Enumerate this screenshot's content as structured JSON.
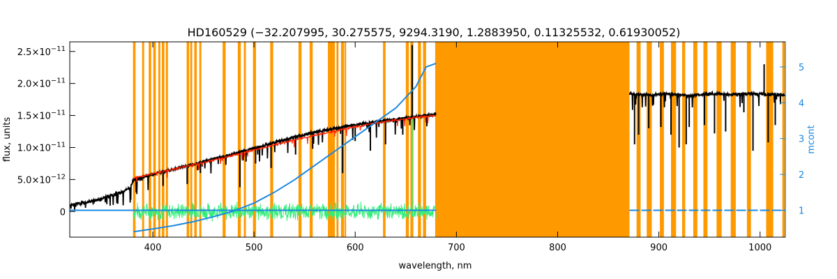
{
  "chart_data": {
    "type": "line",
    "title": "HD160529   (−32.207995, 30.275575, 9294.3190, 1.2883950, 0.11325532, 0.61930052)",
    "xlabel": "wavelength, nm",
    "ylabel_left": "flux, units",
    "ylabel_right": "mcont",
    "xlim": [
      318,
      1025
    ],
    "ylim_left": [
      -4e-12,
      2.65e-11
    ],
    "ylim_right": [
      0.25,
      5.7
    ],
    "x_ticks": [
      400,
      500,
      600,
      700,
      800,
      900,
      1000
    ],
    "x_tick_labels": [
      "400",
      "500",
      "600",
      "700",
      "800",
      "900",
      "1000"
    ],
    "y_left_ticks": [
      0,
      5e-12,
      1e-11,
      1.5e-11,
      2e-11,
      2.5e-11
    ],
    "y_left_tick_labels": [
      {
        "mantissa": "0",
        "exp": ""
      },
      {
        "mantissa": "5.0×10",
        "exp": "−12"
      },
      {
        "mantissa": "1.0×10",
        "exp": "−11"
      },
      {
        "mantissa": "1.5×10",
        "exp": "−11"
      },
      {
        "mantissa": "2.0×10",
        "exp": "−11"
      },
      {
        "mantissa": "2.5×10",
        "exp": "−11"
      }
    ],
    "y_right_ticks": [
      1,
      2,
      3,
      4,
      5
    ],
    "y_right_tick_labels": [
      "1",
      "2",
      "3",
      "4",
      "5"
    ],
    "masked_regions": [
      [
        380.5,
        383
      ],
      [
        389.5,
        391.5
      ],
      [
        396,
        398.5
      ],
      [
        400.5,
        403
      ],
      [
        405.5,
        407.5
      ],
      [
        409,
        411.5
      ],
      [
        413,
        415
      ],
      [
        433.5,
        436
      ],
      [
        437,
        439
      ],
      [
        441,
        443.5
      ],
      [
        446,
        448
      ],
      [
        469,
        472
      ],
      [
        484,
        487
      ],
      [
        490,
        492
      ],
      [
        499,
        502
      ],
      [
        516,
        519
      ],
      [
        544,
        547
      ],
      [
        555,
        558
      ],
      [
        573,
        580
      ],
      [
        581.5,
        583.5
      ],
      [
        586,
        589
      ],
      [
        589.5,
        591
      ],
      [
        627.5,
        630
      ],
      [
        650,
        653
      ],
      [
        654.5,
        657.5
      ],
      [
        662,
        665
      ],
      [
        667,
        670
      ],
      [
        679,
        871
      ],
      [
        878,
        882
      ],
      [
        888,
        893
      ],
      [
        901,
        905
      ],
      [
        912,
        917
      ],
      [
        923,
        926
      ],
      [
        934,
        938
      ],
      [
        944,
        948
      ],
      [
        957,
        962
      ],
      [
        971,
        976
      ],
      [
        987,
        991
      ],
      [
        1006,
        1013
      ],
      [
        1022,
        1025
      ]
    ],
    "series": [
      {
        "id": "observed",
        "color": "#000000",
        "segments": [
          {
            "x": [
              318,
              330,
              345,
              360,
              372,
              378,
              381,
              390,
              400,
              420,
              440,
              460,
              480,
              500,
              520,
              540,
              560,
              580,
              600,
              620,
              640,
              660,
              680
            ],
            "y": [
              1e-12,
              1.3e-12,
              1.8e-12,
              2.6e-12,
              3.2e-12,
              3.8e-12,
              4.9e-12,
              5.3e-12,
              5.8e-12,
              6.6e-12,
              7.4e-12,
              8.2e-12,
              9e-12,
              9.9e-12,
              1.08e-11,
              1.16e-11,
              1.24e-11,
              1.3e-11,
              1.35e-11,
              1.4e-11,
              1.44e-11,
              1.48e-11,
              1.52e-11
            ]
          },
          {
            "x": [
              871,
              890,
              910,
              930,
              950,
              970,
              990,
              1010,
              1025
            ],
            "y": [
              1.84e-11,
              1.82e-11,
              1.84e-11,
              1.81e-11,
              1.84e-11,
              1.83e-11,
              1.84e-11,
              1.83e-11,
              1.82e-11
            ]
          }
        ],
        "absorption_lines": [
          [
            410.2,
            4e-12
          ],
          [
            434.0,
            4.3e-12
          ],
          [
            447.1,
            6e-12
          ],
          [
            486.1,
            3.8e-12
          ],
          [
            492.2,
            7.8e-12
          ],
          [
            501.6,
            7.5e-12
          ],
          [
            516.9,
            6.8e-12
          ],
          [
            541.1,
            8.9e-12
          ],
          [
            558.0,
            9.8e-12
          ],
          [
            587.6,
            6e-12
          ],
          [
            600.0,
            1.1e-11
          ],
          [
            615.0,
            9.5e-12
          ],
          [
            630.0,
            1.05e-11
          ],
          [
            647.0,
            1.2e-11
          ],
          [
            876.0,
            1.05e-11
          ],
          [
            880.0,
            1.2e-11
          ],
          [
            890.0,
            1.3e-11
          ],
          [
            902.0,
            1.32e-11
          ],
          [
            912.0,
            1.2e-11
          ],
          [
            920.0,
            1e-11
          ],
          [
            927.0,
            1.05e-11
          ],
          [
            930.0,
            1.32e-11
          ],
          [
            945.0,
            1.35e-11
          ],
          [
            955.0,
            1.22e-11
          ],
          [
            966.0,
            1.25e-11
          ],
          [
            984.0,
            1.55e-11
          ],
          [
            993.0,
            9.5e-12
          ],
          [
            1008.0,
            1.08e-11
          ],
          [
            1015.0,
            1.35e-11
          ]
        ],
        "emission_lines": [
          [
            656.3,
            2.6e-11
          ],
          [
            1004.0,
            2.3e-11
          ]
        ]
      },
      {
        "id": "model",
        "color": "#ff2200",
        "x": [
          381,
          400,
          420,
          440,
          460,
          480,
          500,
          520,
          540,
          560,
          580,
          600,
          620,
          640,
          660,
          680
        ],
        "y": [
          5.2e-12,
          5.9e-12,
          6.6e-12,
          7.3e-12,
          8e-12,
          8.8e-12,
          9.6e-12,
          1.04e-11,
          1.12e-11,
          1.19e-11,
          1.26e-11,
          1.32e-11,
          1.38e-11,
          1.43e-11,
          1.47e-11,
          1.5e-11
        ]
      },
      {
        "id": "residuals",
        "color": "#33ee77",
        "x_range": [
          381,
          680
        ],
        "center": 0,
        "amplitude": 1.6e-12,
        "emission_peak": [
          656.3,
          2.6e-11
        ]
      },
      {
        "id": "mcont",
        "color": "#1a88e0",
        "axis": "right",
        "segments": [
          {
            "x": [
              318,
              340,
              360,
              380,
              400,
              420,
              440,
              460,
              480,
              500,
              520,
              540,
              560,
              580,
              600,
              620,
              640,
              660,
              670,
              680
            ],
            "y": [
              1.0,
              1.0,
              1.0,
              1.0,
              1.0,
              1.0,
              1.0,
              1.0,
              1.0,
              1.0,
              1.0,
              1.0,
              1.0,
              1.0,
              1.0,
              1.0,
              1.0,
              1.0,
              1.0,
              1.0
            ]
          },
          {
            "x": [
              871,
              900,
              930,
              960,
              990,
              1025
            ],
            "y": [
              1.0,
              1.0,
              1.0,
              1.0,
              1.0,
              1.0
            ]
          }
        ],
        "curve": {
          "x": [
            381,
            400,
            420,
            440,
            460,
            480,
            500,
            520,
            540,
            560,
            580,
            600,
            620,
            640,
            660,
            670,
            680
          ],
          "y": [
            0.4,
            0.48,
            0.57,
            0.68,
            0.82,
            0.98,
            1.2,
            1.5,
            1.85,
            2.25,
            2.65,
            3.05,
            3.45,
            3.85,
            4.45,
            5.0,
            5.1
          ]
        }
      }
    ],
    "grid": false
  }
}
